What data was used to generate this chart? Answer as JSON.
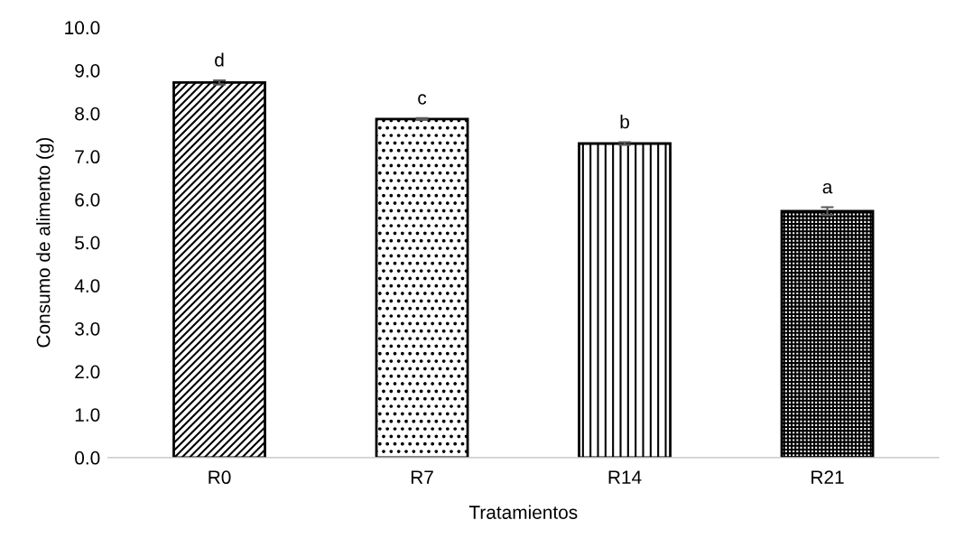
{
  "chart_data": {
    "type": "bar",
    "xlabel": "Tratamientos",
    "ylabel": "Consumo de alimento (g)",
    "categories": [
      "R0",
      "R7",
      "R14",
      "R21"
    ],
    "values": [
      8.72,
      7.87,
      7.3,
      5.73
    ],
    "errors": [
      0.05,
      0.02,
      0.03,
      0.09
    ],
    "ylim": [
      0,
      10
    ],
    "yticks": [
      {
        "value": 0,
        "label": "0.0"
      },
      {
        "value": 1,
        "label": "1.0"
      },
      {
        "value": 2,
        "label": "2.0"
      },
      {
        "value": 3,
        "label": "3.0"
      },
      {
        "value": 4,
        "label": "4.0"
      },
      {
        "value": 5,
        "label": "5.0"
      },
      {
        "value": 6,
        "label": "6.0"
      },
      {
        "value": 7,
        "label": "7.0"
      },
      {
        "value": 8,
        "label": "8.0"
      },
      {
        "value": 9,
        "label": "9.0"
      },
      {
        "value": 10,
        "label": "10.0"
      }
    ],
    "annotations": [
      "d",
      "c",
      "b",
      "a"
    ],
    "grid": false,
    "legend": false
  }
}
